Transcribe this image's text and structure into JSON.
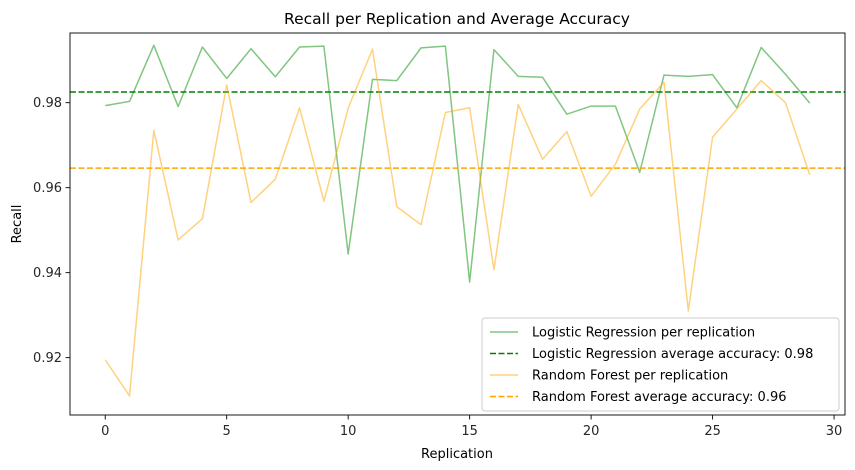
{
  "chart_data": {
    "type": "line",
    "title": "Recall per Replication and Average Accuracy",
    "xlabel": "Replication",
    "ylabel": "Recall",
    "xlim": [
      -1.45,
      30.45
    ],
    "ylim": [
      0.9065,
      0.9964
    ],
    "xticks": [
      0,
      5,
      10,
      15,
      20,
      25,
      30
    ],
    "yticks": [
      0.92,
      0.94,
      0.96,
      0.98
    ],
    "ytick_labels": [
      "0.92",
      "0.94",
      "0.96",
      "0.98"
    ],
    "grid": false,
    "legend_position": "lower-right",
    "x": [
      0,
      1,
      2,
      3,
      4,
      5,
      6,
      7,
      8,
      9,
      10,
      11,
      12,
      13,
      14,
      15,
      16,
      17,
      18,
      19,
      20,
      21,
      22,
      23,
      24,
      25,
      26,
      27,
      28,
      29
    ],
    "series": [
      {
        "name": "Logistic Regression per replication",
        "style": "solid",
        "color": "#2ca02c",
        "opacity": 0.6,
        "values": [
          0.9793,
          0.9803,
          0.9935,
          0.9791,
          0.9931,
          0.9857,
          0.9927,
          0.9861,
          0.9931,
          0.9933,
          0.9444,
          0.9855,
          0.9852,
          0.9929,
          0.9933,
          0.9378,
          0.9925,
          0.9862,
          0.986,
          0.9773,
          0.9792,
          0.9792,
          0.9636,
          0.9865,
          0.9862,
          0.9866,
          0.9788,
          0.993,
          0.9867,
          0.9799
        ]
      },
      {
        "name": "Logistic Regression average accuracy: 0.98",
        "style": "dashed",
        "color": "#008000",
        "constant": 0.9825
      },
      {
        "name": "Random Forest per replication",
        "style": "solid",
        "color": "#ffa500",
        "opacity": 0.5,
        "values": [
          0.9195,
          0.911,
          0.9735,
          0.9477,
          0.9527,
          0.9842,
          0.9565,
          0.962,
          0.9788,
          0.9568,
          0.9787,
          0.9926,
          0.9555,
          0.9513,
          0.9777,
          0.9788,
          0.9407,
          0.9796,
          0.9667,
          0.9732,
          0.958,
          0.9655,
          0.9785,
          0.9848,
          0.931,
          0.9719,
          0.9785,
          0.9852,
          0.98,
          0.963
        ]
      },
      {
        "name": "Random Forest average accuracy: 0.96",
        "style": "dashed",
        "color": "#ffa500",
        "constant": 0.9646
      }
    ]
  }
}
